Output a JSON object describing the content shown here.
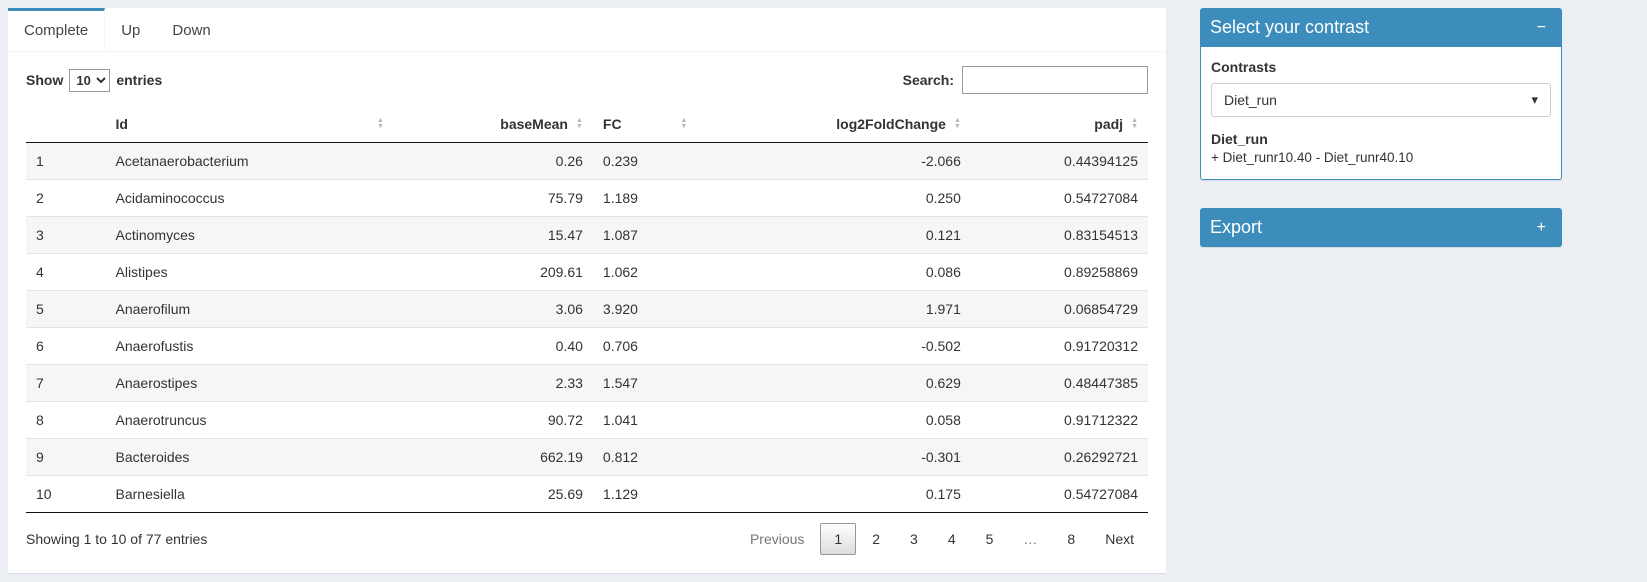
{
  "colors": {
    "primary": "#3c8dbc"
  },
  "tabs": [
    {
      "label": "Complete",
      "active": true
    },
    {
      "label": "Up",
      "active": false
    },
    {
      "label": "Down",
      "active": false
    }
  ],
  "table_controls": {
    "show_label": "Show",
    "page_length": "10",
    "entries_label": "entries",
    "search_label": "Search:",
    "search_value": ""
  },
  "table": {
    "columns": [
      {
        "label": "",
        "align": "left",
        "sortable": false
      },
      {
        "label": "Id",
        "align": "left",
        "sortable": true
      },
      {
        "label": "baseMean",
        "align": "right",
        "sortable": true
      },
      {
        "label": "FC",
        "align": "left",
        "sortable": true
      },
      {
        "label": "log2FoldChange",
        "align": "right",
        "sortable": true
      },
      {
        "label": "padj",
        "align": "right",
        "sortable": true
      }
    ],
    "rows": [
      [
        "1",
        "Acetanaerobacterium",
        "0.26",
        "0.239",
        "-2.066",
        "0.44394125"
      ],
      [
        "2",
        "Acidaminococcus",
        "75.79",
        "1.189",
        "0.250",
        "0.54727084"
      ],
      [
        "3",
        "Actinomyces",
        "15.47",
        "1.087",
        "0.121",
        "0.83154513"
      ],
      [
        "4",
        "Alistipes",
        "209.61",
        "1.062",
        "0.086",
        "0.89258869"
      ],
      [
        "5",
        "Anaerofilum",
        "3.06",
        "3.920",
        "1.971",
        "0.06854729"
      ],
      [
        "6",
        "Anaerofustis",
        "0.40",
        "0.706",
        "-0.502",
        "0.91720312"
      ],
      [
        "7",
        "Anaerostipes",
        "2.33",
        "1.547",
        "0.629",
        "0.48447385"
      ],
      [
        "8",
        "Anaerotruncus",
        "90.72",
        "1.041",
        "0.058",
        "0.91712322"
      ],
      [
        "9",
        "Bacteroides",
        "662.19",
        "0.812",
        "-0.301",
        "0.26292721"
      ],
      [
        "10",
        "Barnesiella",
        "25.69",
        "1.129",
        "0.175",
        "0.54727084"
      ]
    ]
  },
  "table_footer": {
    "info": "Showing 1 to 10 of 77 entries",
    "pagination": [
      {
        "label": "Previous",
        "name": "previous",
        "state": "disabled"
      },
      {
        "label": "1",
        "name": "page-1",
        "state": "active"
      },
      {
        "label": "2",
        "name": "page-2",
        "state": "normal"
      },
      {
        "label": "3",
        "name": "page-3",
        "state": "normal"
      },
      {
        "label": "4",
        "name": "page-4",
        "state": "normal"
      },
      {
        "label": "5",
        "name": "page-5",
        "state": "normal"
      },
      {
        "label": "…",
        "name": "ellipsis",
        "state": "disabled"
      },
      {
        "label": "8",
        "name": "page-8",
        "state": "normal"
      },
      {
        "label": "Next",
        "name": "next",
        "state": "normal"
      }
    ]
  },
  "contrast_box": {
    "title": "Select your contrast",
    "collapse_icon": "−",
    "contrasts_label": "Contrasts",
    "selected_contrast": "Diet_run",
    "contrast_name": "Diet_run",
    "contrast_formula": "+ Diet_runr10.40 - Diet_runr40.10"
  },
  "export_box": {
    "title": "Export",
    "expand_icon": "+"
  }
}
